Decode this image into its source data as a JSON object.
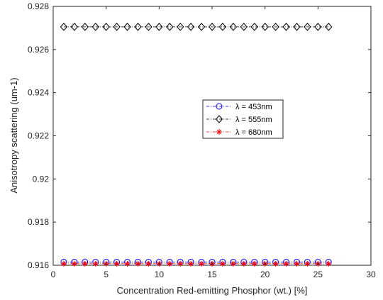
{
  "chart_data": {
    "type": "line",
    "xlabel": "Concentration Red-emitting Phosphor (wt.) [%]",
    "ylabel": "Anisotropy scattering (um-1)",
    "xlim": [
      0,
      30
    ],
    "ylim": [
      0.916,
      0.928
    ],
    "xticks": [
      0,
      5,
      10,
      15,
      20,
      25,
      30
    ],
    "yticks": [
      0.916,
      0.918,
      0.92,
      0.922,
      0.924,
      0.926,
      0.928
    ],
    "xtick_labels": [
      "0",
      "5",
      "10",
      "15",
      "20",
      "25",
      "30"
    ],
    "ytick_labels": [
      "0.916",
      "0.918",
      "0.92",
      "0.922",
      "0.924",
      "0.926",
      "0.928"
    ],
    "grid": false,
    "legend_position": "center-right",
    "x": [
      1,
      2,
      3,
      4,
      5,
      6,
      7,
      8,
      9,
      10,
      11,
      12,
      13,
      14,
      15,
      16,
      17,
      18,
      19,
      20,
      21,
      22,
      23,
      24,
      25,
      26
    ],
    "series": [
      {
        "name": "λ = 453nm",
        "marker": "circle",
        "color": "#0000ff",
        "values": [
          0.91615,
          0.91615,
          0.91615,
          0.91615,
          0.91615,
          0.91615,
          0.91615,
          0.91615,
          0.91615,
          0.91615,
          0.91615,
          0.91615,
          0.91615,
          0.91615,
          0.91615,
          0.91615,
          0.91615,
          0.91615,
          0.91615,
          0.91615,
          0.91615,
          0.91615,
          0.91615,
          0.91615,
          0.91615,
          0.91615
        ]
      },
      {
        "name": "λ = 555nm",
        "marker": "diamond",
        "color": "#000000",
        "values": [
          0.92705,
          0.92705,
          0.92705,
          0.92705,
          0.92705,
          0.92705,
          0.92705,
          0.92705,
          0.92705,
          0.92705,
          0.92705,
          0.92705,
          0.92705,
          0.92705,
          0.92705,
          0.92705,
          0.92705,
          0.92705,
          0.92705,
          0.92705,
          0.92705,
          0.92705,
          0.92705,
          0.92705,
          0.92705,
          0.92705
        ]
      },
      {
        "name": "λ = 680nm",
        "marker": "asterisk",
        "color": "#ff0000",
        "values": [
          0.91607,
          0.91607,
          0.91607,
          0.91607,
          0.91607,
          0.91607,
          0.91607,
          0.91607,
          0.91607,
          0.91607,
          0.91607,
          0.91607,
          0.91607,
          0.91607,
          0.91607,
          0.91607,
          0.91607,
          0.91607,
          0.91607,
          0.91607,
          0.91607,
          0.91607,
          0.91607,
          0.91607,
          0.91607,
          0.91607
        ]
      }
    ]
  }
}
